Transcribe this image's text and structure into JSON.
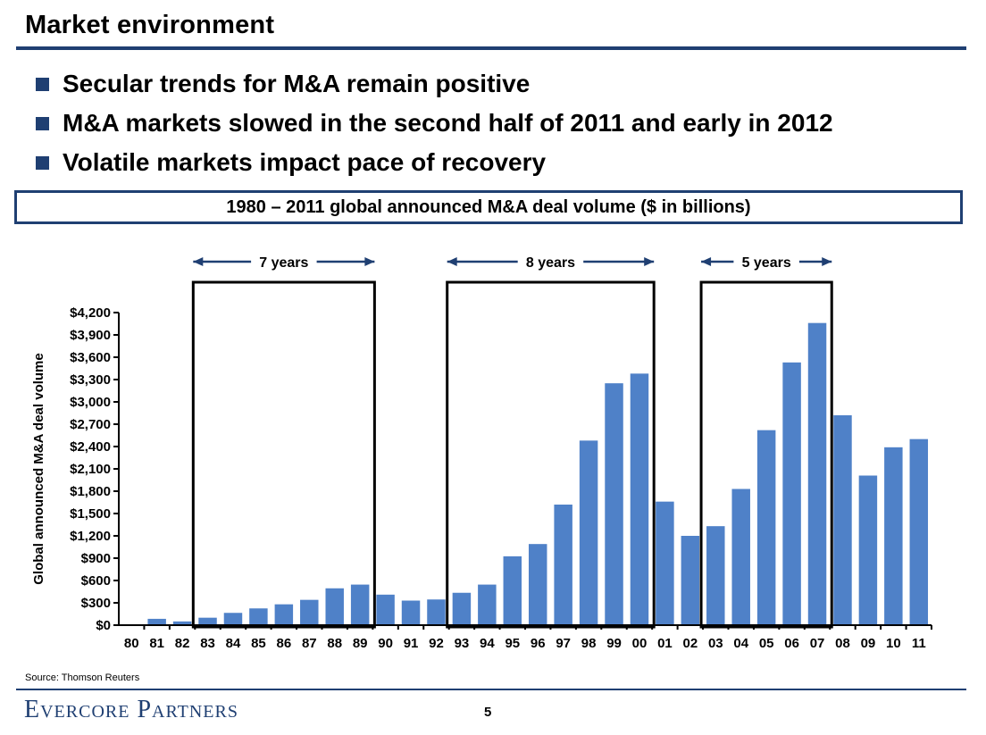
{
  "slide": {
    "title": "Market environment",
    "bullets": [
      "Secular trends for M&A remain positive",
      "M&A markets slowed in the second half of 2011 and early in 2012",
      "Volatile markets impact pace of recovery"
    ],
    "source": "Source: Thomson Reuters",
    "brand": "Evercore Partners",
    "page_number": "5"
  },
  "colors": {
    "bar": "#4f81c8",
    "accent": "#1f3f72"
  },
  "chart_data": {
    "type": "bar",
    "title": "1980 – 2011 global announced M&A deal volume ($ in billions)",
    "ylabel": "Global announced M&A deal volume",
    "xlabel": "",
    "categories": [
      "80",
      "81",
      "82",
      "83",
      "84",
      "85",
      "86",
      "87",
      "88",
      "89",
      "90",
      "91",
      "92",
      "93",
      "94",
      "95",
      "96",
      "97",
      "98",
      "99",
      "00",
      "01",
      "02",
      "03",
      "04",
      "05",
      "06",
      "07",
      "08",
      "09",
      "10",
      "11"
    ],
    "values": [
      0,
      85,
      50,
      100,
      165,
      225,
      280,
      340,
      495,
      545,
      410,
      330,
      345,
      435,
      545,
      925,
      1090,
      1620,
      2480,
      3250,
      3380,
      1660,
      1200,
      1330,
      1830,
      2620,
      3530,
      4060,
      2820,
      2010,
      2390,
      2500
    ],
    "ylim": [
      0,
      4200
    ],
    "yticks": [
      0,
      300,
      600,
      900,
      1200,
      1500,
      1800,
      2100,
      2400,
      2700,
      3000,
      3300,
      3600,
      3900,
      4200
    ],
    "ytick_labels": [
      "$0",
      "$300",
      "$600",
      "$900",
      "$1,200",
      "$1,500",
      "$1,800",
      "$2,100",
      "$2,400",
      "$2,700",
      "$3,000",
      "$3,300",
      "$3,600",
      "$3,900",
      "$4,200"
    ],
    "annotations": [
      {
        "label": "7 years",
        "from": "83",
        "to": "89"
      },
      {
        "label": "8 years",
        "from": "93",
        "to": "00"
      },
      {
        "label": "5 years",
        "from": "03",
        "to": "07"
      }
    ],
    "grid": false,
    "legend": "none"
  }
}
